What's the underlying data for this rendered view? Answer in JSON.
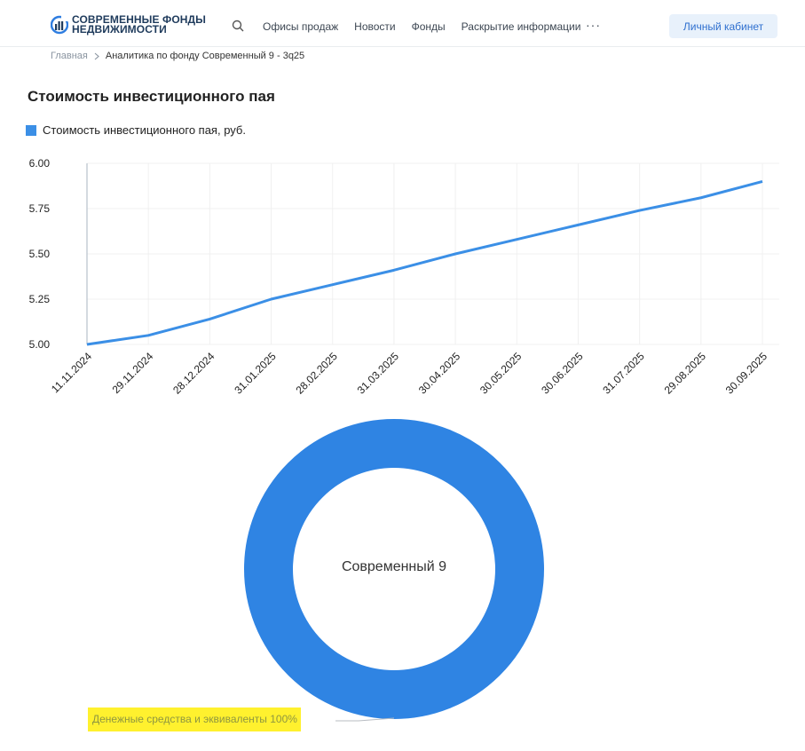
{
  "header": {
    "logo_line1": "СОВРЕМЕННЫЕ ФОНДЫ",
    "logo_line2": "НЕДВИЖИМОСТИ",
    "nav": [
      "Офисы продаж",
      "Новости",
      "Фонды",
      "Раскрытие информации"
    ],
    "more": "···",
    "cabinet_label": "Личный кабинет"
  },
  "breadcrumb": {
    "home": "Главная",
    "current": "Аналитика по фонду Современный 9 - 3q25"
  },
  "page_title": "Стоимость инвестиционного пая",
  "chart_data": [
    {
      "type": "line",
      "title": "Стоимость инвестиционного пая",
      "series": [
        {
          "name": "Стоимость инвестиционного пая, руб.",
          "color": "#3b8fe6",
          "values": [
            5.0,
            5.05,
            5.14,
            5.25,
            5.33,
            5.41,
            5.5,
            5.58,
            5.66,
            5.74,
            5.81,
            5.9
          ]
        }
      ],
      "x": [
        "11.11.2024",
        "29.11.2024",
        "28.12.2024",
        "31.01.2025",
        "28.02.2025",
        "31.03.2025",
        "30.04.2025",
        "30.05.2025",
        "30.06.2025",
        "31.07.2025",
        "29.08.2025",
        "30.09.2025"
      ],
      "yticks": [
        "6.00",
        "5.75",
        "5.50",
        "5.25",
        "5.00"
      ],
      "ylim": [
        5.0,
        6.0
      ],
      "grid": true,
      "legend": "top-left"
    },
    {
      "type": "pie",
      "variant": "donut",
      "center_label": "Современный 9",
      "slices": [
        {
          "label": "Денежные средства и эквиваленты",
          "value": 100,
          "color": "#2f84e3"
        }
      ],
      "slice_label_text": "Денежные средства и эквиваленты 100%"
    }
  ],
  "colors": {
    "accent": "#2e6fcf",
    "line": "#3b8fe6",
    "donut": "#2f84e3",
    "highlight": "#fff12e"
  }
}
